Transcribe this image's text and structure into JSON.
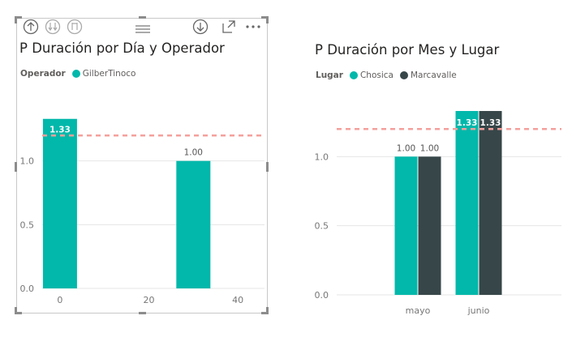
{
  "colors": {
    "teal": "#01b8aa",
    "dark": "#374649",
    "reference_line": "#f4a09c",
    "grid": "#e6e6e6",
    "axis_text": "#777777"
  },
  "toolbar": {
    "icons": [
      "drill-up-icon",
      "drill-down-all-icon",
      "expand-next-level-icon",
      "move-handle-icon",
      "drill-down-toggle-icon",
      "focus-mode-icon",
      "more-options-icon"
    ]
  },
  "chart_data": [
    {
      "type": "bar",
      "title": "P Duración por Día y Operador",
      "legend": {
        "title": "Operador",
        "entries": [
          {
            "name": "GilberTinoco",
            "color": "#01b8aa"
          }
        ]
      },
      "x": [
        0,
        30
      ],
      "series": [
        {
          "name": "GilberTinoco",
          "values": [
            1.33,
            1.0
          ],
          "labels": [
            "1.33",
            "1.00"
          ]
        }
      ],
      "xticks": [
        "0",
        "20",
        "40"
      ],
      "xlim": [
        -4,
        46
      ],
      "ylim": [
        0,
        1.5
      ],
      "yticks": [
        "0.0",
        "0.5",
        "1.0"
      ],
      "reference_line": 1.2,
      "grid": true
    },
    {
      "type": "bar",
      "title": "P Duración por Mes y Lugar",
      "legend": {
        "title": "Lugar",
        "entries": [
          {
            "name": "Chosica",
            "color": "#01b8aa"
          },
          {
            "name": "Marcavalle",
            "color": "#374649"
          }
        ]
      },
      "categories": [
        "mayo",
        "junio"
      ],
      "series": [
        {
          "name": "Chosica",
          "values": [
            1.0,
            1.33
          ],
          "labels": [
            "1.00",
            "1.33"
          ]
        },
        {
          "name": "Marcavalle",
          "values": [
            1.0,
            1.33
          ],
          "labels": [
            "1.00",
            "1.33"
          ]
        }
      ],
      "ylim": [
        0,
        1.5
      ],
      "yticks": [
        "0.0",
        "0.5",
        "1.0"
      ],
      "reference_line": 1.2,
      "grid": true
    }
  ]
}
